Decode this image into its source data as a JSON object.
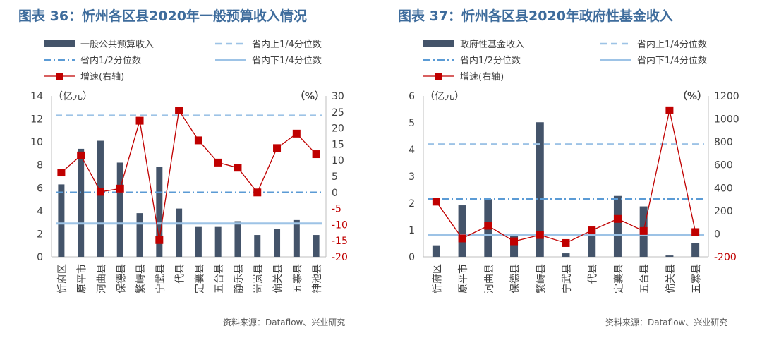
{
  "colors": {
    "bar": "#44546a",
    "q_upper": "#9dc3e6",
    "q_mid": "#5b9bd5",
    "q_lower": "#9dc3e6",
    "growth": "#c00000",
    "title": "#3e6c9c",
    "axis_text": "#404040"
  },
  "chart_data": [
    {
      "id": "fig36",
      "type": "bar",
      "title": "图表 36：忻州各区县2020年一般预算收入情况",
      "source": "资料来源：Dataflow、兴业研究",
      "left_unit": "（亿元）",
      "right_unit": "（%）",
      "categories": [
        "忻府区",
        "原平市",
        "河曲县",
        "保德县",
        "繁峙县",
        "宁武县",
        "代县",
        "定襄县",
        "五台县",
        "静乐县",
        "岢岚县",
        "偏关县",
        "五寨县",
        "神池县"
      ],
      "series": [
        {
          "name": "一般公共预算收入",
          "axis": "left",
          "kind": "bar",
          "values": [
            6.3,
            9.4,
            10.1,
            8.2,
            3.8,
            7.8,
            4.2,
            2.6,
            2.6,
            3.1,
            1.9,
            2.4,
            3.2,
            1.9
          ]
        },
        {
          "name": "增速(右轴)",
          "axis": "right",
          "kind": "line",
          "values": [
            6.2,
            11.5,
            0.2,
            1.2,
            22.3,
            -14.8,
            25.5,
            16.2,
            9.3,
            7.7,
            0.0,
            13.8,
            18.3,
            11.9
          ]
        }
      ],
      "reference_lines": [
        {
          "name": "省内上1/4分位数",
          "style": "dash",
          "axis": "left",
          "value": 12.3
        },
        {
          "name": "省内1/2分位数",
          "style": "dashdot",
          "axis": "left",
          "value": 5.6
        },
        {
          "name": "省内下1/4分位数",
          "style": "solid",
          "axis": "left",
          "value": 2.9
        }
      ],
      "left_axis": {
        "min": 0,
        "max": 14,
        "ticks": [
          0,
          2,
          4,
          6,
          8,
          10,
          12,
          14
        ]
      },
      "right_axis": {
        "min": -20,
        "max": 30,
        "ticks": [
          -20,
          -15,
          -10,
          -5,
          0,
          5,
          10,
          15,
          20,
          25,
          30
        ]
      },
      "legend_order": [
        "一般公共预算收入",
        "省内上1/4分位数",
        "省内1/2分位数",
        "省内下1/4分位数",
        "增速(右轴)"
      ]
    },
    {
      "id": "fig37",
      "type": "bar",
      "title": "图表 37：忻州各区县2020年政府性基金收入",
      "source": "资料来源：Dataflow、兴业研究",
      "left_unit": "（亿元）",
      "right_unit": "（%）",
      "categories": [
        "忻府区",
        "原平市",
        "河曲县",
        "保德县",
        "繁峙县",
        "宁武县",
        "代县",
        "定襄县",
        "五台县",
        "偏关县",
        "五寨县"
      ],
      "series": [
        {
          "name": "政府性基金收入",
          "axis": "left",
          "kind": "bar",
          "values": [
            0.43,
            1.92,
            2.15,
            0.78,
            5.02,
            0.13,
            1.05,
            2.27,
            1.88,
            0.05,
            0.52
          ]
        },
        {
          "name": "增速(右轴)",
          "axis": "right",
          "kind": "line",
          "values": [
            280,
            -40,
            70,
            -65,
            -10,
            -80,
            30,
            130,
            25,
            1075,
            15
          ]
        }
      ],
      "reference_lines": [
        {
          "name": "省内上1/4分位数",
          "style": "dash",
          "axis": "left",
          "value": 4.2
        },
        {
          "name": "省内1/2分位数",
          "style": "dashdot",
          "axis": "left",
          "value": 2.15
        },
        {
          "name": "省内下1/4分位数",
          "style": "solid",
          "axis": "left",
          "value": 0.82
        }
      ],
      "left_axis": {
        "min": 0,
        "max": 6,
        "ticks": [
          0,
          1,
          2,
          3,
          4,
          5,
          6
        ]
      },
      "right_axis": {
        "min": -200,
        "max": 1200,
        "ticks": [
          -200,
          0,
          200,
          400,
          600,
          800,
          1000,
          1200
        ]
      },
      "legend_order": [
        "政府性基金收入",
        "省内上1/4分位数",
        "省内1/2分位数",
        "省内下1/4分位数",
        "增速(右轴)"
      ]
    }
  ]
}
